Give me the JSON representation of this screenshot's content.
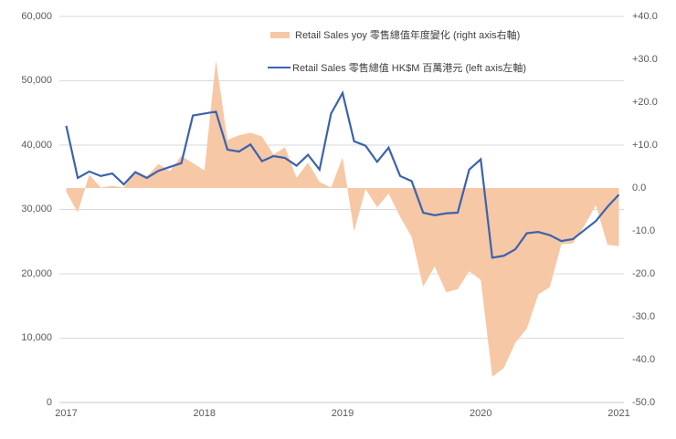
{
  "chart_data": {
    "type": "line+area combo, dual axis",
    "title": "",
    "x_monthly": [
      "2017-01",
      "2017-02",
      "2017-03",
      "2017-04",
      "2017-05",
      "2017-06",
      "2017-07",
      "2017-08",
      "2017-09",
      "2017-10",
      "2017-11",
      "2017-12",
      "2018-01",
      "2018-02",
      "2018-03",
      "2018-04",
      "2018-05",
      "2018-06",
      "2018-07",
      "2018-08",
      "2018-09",
      "2018-10",
      "2018-11",
      "2018-12",
      "2019-01",
      "2019-02",
      "2019-03",
      "2019-04",
      "2019-05",
      "2019-06",
      "2019-07",
      "2019-08",
      "2019-09",
      "2019-10",
      "2019-11",
      "2019-12",
      "2020-01",
      "2020-02",
      "2020-03",
      "2020-04",
      "2020-05",
      "2020-06",
      "2020-07",
      "2020-08",
      "2020-09",
      "2020-10",
      "2020-11",
      "2020-12",
      "2021-01"
    ],
    "series": [
      {
        "name": "Retail Sales yoy 零售總值年度變化 (right axis右軸)",
        "type": "area",
        "axis": "right",
        "color": "#F6C8A6",
        "values": [
          -0.9,
          -5.7,
          3.1,
          0.1,
          0.5,
          0.1,
          4.0,
          2.7,
          5.6,
          3.9,
          7.5,
          5.8,
          4.1,
          29.8,
          11.2,
          12.3,
          12.9,
          12.0,
          7.8,
          9.5,
          2.4,
          5.9,
          1.4,
          0.1,
          7.1,
          -10.1,
          -0.2,
          -4.5,
          -1.3,
          -6.7,
          -11.4,
          -23.0,
          -18.3,
          -24.3,
          -23.6,
          -19.4,
          -21.4,
          -44.0,
          -42.0,
          -36.1,
          -32.8,
          -24.8,
          -23.1,
          -13.1,
          -12.9,
          -8.8,
          -4.0,
          -13.2,
          -13.6
        ]
      },
      {
        "name": "Retail Sales 零售總值 HK$M 百萬港元 (left axis左軸)",
        "type": "line",
        "axis": "left",
        "color": "#3B63AD",
        "values": [
          43000,
          34900,
          35900,
          35200,
          35600,
          33900,
          35800,
          34900,
          36000,
          36600,
          37200,
          44600,
          44900,
          45200,
          39300,
          39000,
          40100,
          37500,
          38300,
          38000,
          36800,
          38500,
          36200,
          44900,
          48100,
          40600,
          39900,
          37400,
          39600,
          35200,
          34400,
          29500,
          29100,
          29400,
          29500,
          36200,
          37800,
          22500,
          22800,
          23800,
          26300,
          26500,
          26000,
          25100,
          25400,
          26800,
          28200,
          30400,
          32300
        ]
      }
    ],
    "left_axis": {
      "min": 0,
      "max": 60000,
      "ticks": [
        "60,000",
        "50,000",
        "40,000",
        "30,000",
        "20,000",
        "10,000",
        "0"
      ]
    },
    "right_axis": {
      "min": -50,
      "max": 40,
      "ticks": [
        "+40.0",
        "+30.0",
        "+20.0",
        "+10.0",
        "0.0",
        "-10.0",
        "-20.0",
        "-30.0",
        "-40.0",
        "-50.0"
      ]
    },
    "x_axis": {
      "ticks": [
        "2017",
        "2018",
        "2019",
        "2020",
        "2021"
      ]
    },
    "grid": "horizontal gridlines aligned to left axis",
    "grid_color": "#D9D9D9",
    "axis_line_color": "#C9C9C9",
    "legend_position": "top-center"
  },
  "legend": {
    "items": [
      {
        "label": "Retail Sales yoy 零售總值年度變化 (right axis右軸)",
        "swatch": "area-swatch",
        "color": "#F6C8A6"
      },
      {
        "label": "Retail Sales 零售總值 HK$M 百萬港元 (left axis左軸)",
        "swatch": "line-swatch",
        "color": "#3B63AD"
      }
    ]
  },
  "colors": {
    "background": "#FFFFFF",
    "area_series": "#F6C8A6",
    "line_series": "#3B63AD",
    "axis_text": "#595959",
    "legend_text": "#404040"
  }
}
